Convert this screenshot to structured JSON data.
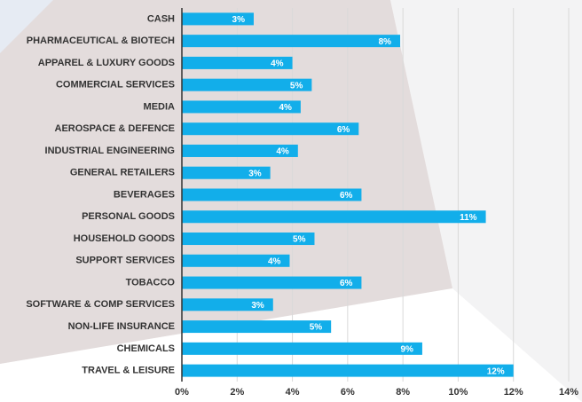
{
  "chart_data": {
    "type": "barh",
    "categories": [
      "CASH",
      "PHARMACEUTICAL & BIOTECH",
      "APPAREL & LUXURY GOODS",
      "COMMERCIAL SERVICES",
      "MEDIA",
      "AEROSPACE & DEFENCE",
      "INDUSTRIAL ENGINEERING",
      "GENERAL RETAILERS",
      "BEVERAGES",
      "PERSONAL GOODS",
      "HOUSEHOLD GOODS",
      "SUPPORT SERVICES",
      "TOBACCO",
      "SOFTWARE & COMP SERVICES",
      "NON-LIFE INSURANCE",
      "CHEMICALS",
      "TRAVEL & LEISURE"
    ],
    "values": [
      2.6,
      7.9,
      4.0,
      4.7,
      4.3,
      6.4,
      4.2,
      3.2,
      6.5,
      11.0,
      4.8,
      3.9,
      6.5,
      3.3,
      5.4,
      8.7,
      12.0
    ],
    "value_labels": [
      "3%",
      "8%",
      "4%",
      "5%",
      "4%",
      "6%",
      "4%",
      "3%",
      "6%",
      "11%",
      "5%",
      "4%",
      "6%",
      "3%",
      "5%",
      "9%",
      "12%"
    ],
    "color": "#12aeea",
    "xlim": [
      0,
      14
    ],
    "xticks": [
      {
        "value": 0,
        "label": "0%"
      },
      {
        "value": 2,
        "label": "2%"
      },
      {
        "value": 4,
        "label": "4%"
      },
      {
        "value": 6,
        "label": "6%"
      },
      {
        "value": 8,
        "label": "8%"
      },
      {
        "value": 10,
        "label": "10%"
      },
      {
        "value": 12,
        "label": "12%"
      },
      {
        "value": 14,
        "label": "14%"
      }
    ],
    "grid": true
  }
}
